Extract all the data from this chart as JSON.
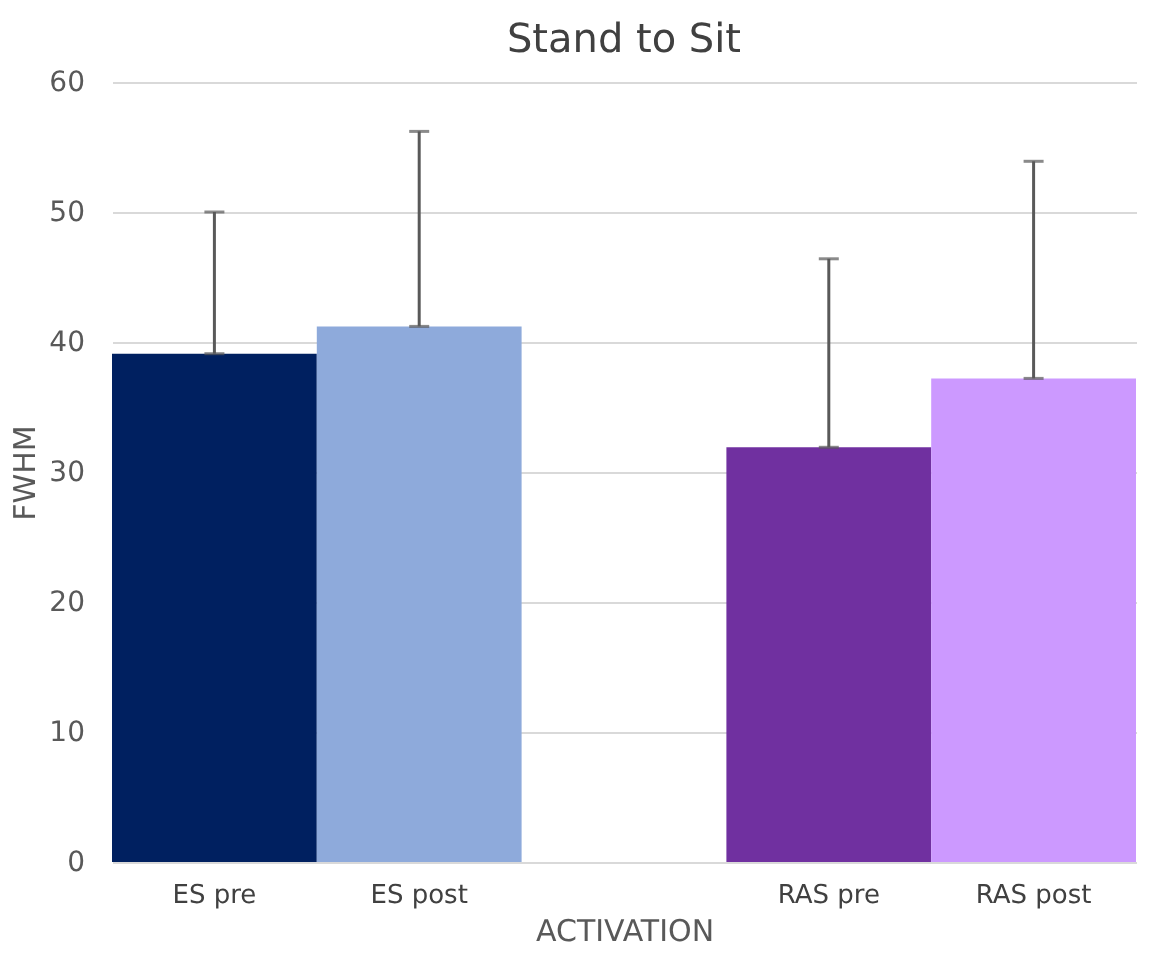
{
  "chart_data": {
    "type": "bar",
    "title": "Stand to Sit",
    "xlabel": "ACTIVATION",
    "ylabel": "FWHM",
    "categories": [
      "ES pre",
      "ES post",
      null,
      "RAS pre",
      "RAS post"
    ],
    "values": [
      39.1,
      41.2,
      null,
      31.9,
      37.2
    ],
    "colors": [
      "#002060",
      "#8eaadb",
      null,
      "#7030a0",
      "#cc99ff"
    ],
    "errors": [
      [
        39.1,
        50.0
      ],
      [
        41.2,
        56.2
      ],
      null,
      [
        31.9,
        46.4
      ],
      [
        37.2,
        53.9
      ]
    ],
    "ylim": [
      0,
      60
    ],
    "yticks": [
      0,
      10,
      20,
      30,
      40,
      50,
      60
    ],
    "grid": "y"
  }
}
